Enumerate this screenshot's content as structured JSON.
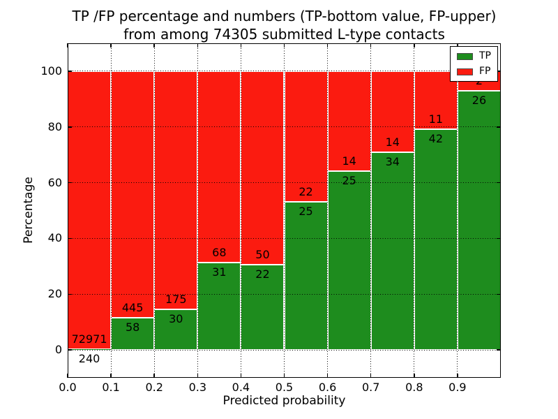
{
  "title": {
    "line1": "TP /FP percentage and numbers (TP-bottom value, FP-upper)",
    "line2": "from among 74305 submitted L-type contacts"
  },
  "chart_data": {
    "type": "bar",
    "subtype": "stacked-percentage-histogram",
    "title": "TP /FP percentage and numbers (TP-bottom value, FP-upper) from among 74305 submitted L-type contacts",
    "total_contacts": 74305,
    "xlabel": "Predicted probability",
    "ylabel": "Percentage",
    "xlim": [
      0.0,
      1.0
    ],
    "ylim": [
      -10,
      110
    ],
    "xticks": [
      "0.0",
      "0.1",
      "0.2",
      "0.3",
      "0.4",
      "0.5",
      "0.6",
      "0.7",
      "0.8",
      "0.9"
    ],
    "yticks": [
      "0",
      "20",
      "40",
      "60",
      "80",
      "100"
    ],
    "grid": "dotted",
    "bin_width": 0.1,
    "bin_starts": [
      0.0,
      0.1,
      0.2,
      0.3,
      0.4,
      0.5,
      0.6,
      0.7,
      0.8,
      0.9
    ],
    "series": [
      {
        "name": "TP",
        "color": "#1e8c1e",
        "counts": [
          240,
          58,
          30,
          31,
          22,
          25,
          25,
          34,
          42,
          26
        ],
        "pct": [
          0.3,
          11.5,
          14.6,
          31.3,
          30.6,
          53.2,
          64.1,
          70.8,
          79.2,
          92.9
        ]
      },
      {
        "name": "FP",
        "color": "#fb1b10",
        "counts": [
          72971,
          445,
          175,
          68,
          50,
          22,
          14,
          14,
          11,
          2
        ],
        "pct": [
          99.7,
          88.5,
          85.4,
          68.7,
          69.4,
          46.8,
          35.9,
          29.2,
          20.8,
          7.1
        ]
      }
    ],
    "legend": {
      "position": "upper right",
      "entries": [
        {
          "label": "TP",
          "color": "#1e8c1e"
        },
        {
          "label": "FP",
          "color": "#fb1b10"
        }
      ]
    }
  }
}
